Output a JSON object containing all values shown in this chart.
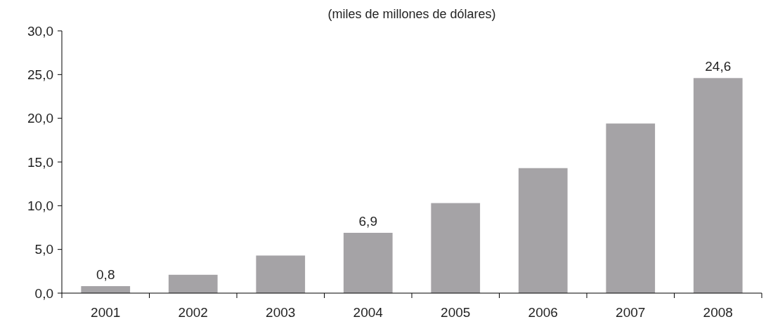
{
  "chart_data": {
    "type": "bar",
    "title": "(miles de millones de dólares)",
    "categories": [
      "2001",
      "2002",
      "2003",
      "2004",
      "2005",
      "2006",
      "2007",
      "2008"
    ],
    "values": [
      0.8,
      2.1,
      4.3,
      6.9,
      10.3,
      14.3,
      19.4,
      24.6
    ],
    "value_labels": [
      "0,8",
      null,
      null,
      "6,9",
      null,
      null,
      null,
      "24,6"
    ],
    "color": "#a5a3a6",
    "ylim": [
      0,
      30
    ],
    "yticks": [
      {
        "value": 0,
        "label": "0,0"
      },
      {
        "value": 5,
        "label": "5,0"
      },
      {
        "value": 10,
        "label": "10,0"
      },
      {
        "value": 15,
        "label": "15,0"
      },
      {
        "value": 20,
        "label": "20,0"
      },
      {
        "value": 25,
        "label": "25,0"
      },
      {
        "value": 30,
        "label": "30,0"
      }
    ],
    "grid": false
  }
}
